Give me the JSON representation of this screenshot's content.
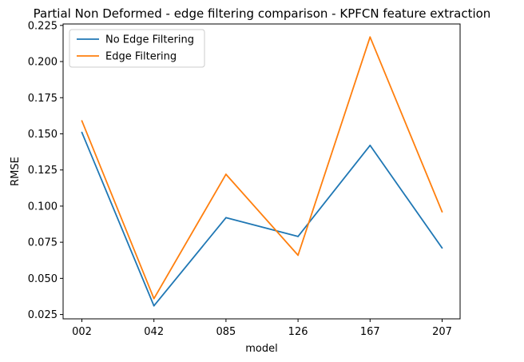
{
  "chart_data": {
    "type": "line",
    "title": "Partial Non Deformed - edge filtering comparison - KPFCN feature extraction",
    "xlabel": "model",
    "ylabel": "RMSE",
    "categories": [
      "002",
      "042",
      "085",
      "126",
      "167",
      "207"
    ],
    "ylim": [
      0.022,
      0.226
    ],
    "yticks": [
      "0.025",
      "0.050",
      "0.075",
      "0.100",
      "0.125",
      "0.150",
      "0.175",
      "0.200",
      "0.225"
    ],
    "grid": false,
    "legend_position": "top-left",
    "series": [
      {
        "name": "No Edge Filtering",
        "color": "#1f77b4",
        "values": [
          0.151,
          0.031,
          0.092,
          0.079,
          0.142,
          0.071
        ]
      },
      {
        "name": "Edge Filtering",
        "color": "#ff7f0e",
        "values": [
          0.159,
          0.036,
          0.122,
          0.066,
          0.217,
          0.096
        ]
      }
    ]
  }
}
